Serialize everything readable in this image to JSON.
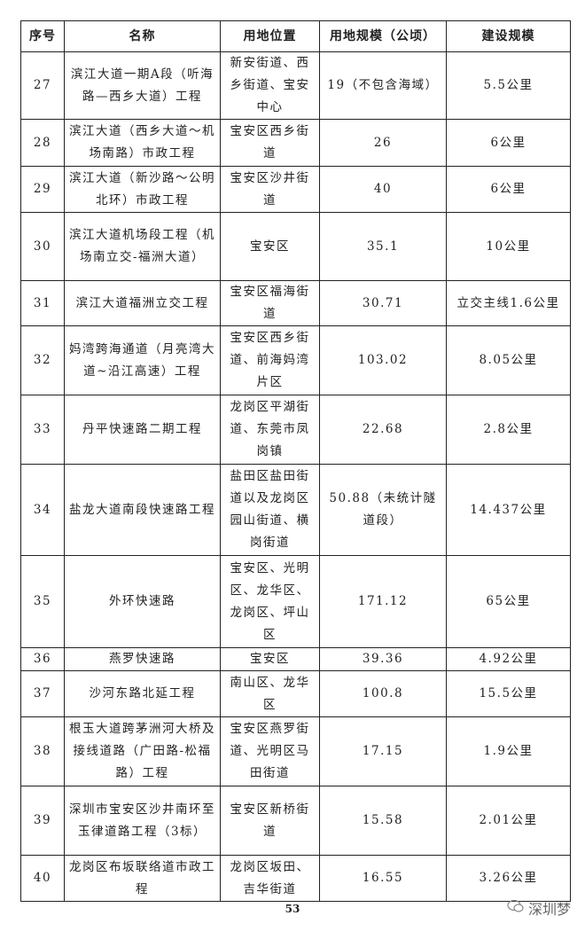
{
  "table": {
    "headers": [
      "序号",
      "名称",
      "用地位置",
      "用地规模（公顷）",
      "建设规模"
    ],
    "rows": [
      {
        "no": "27",
        "name": "滨江大道一期A段（听海路—西乡大道）工程",
        "location": "新安街道、西乡街道、宝安中心",
        "area": "19（不包含海域）",
        "scale": "5.5公里"
      },
      {
        "no": "28",
        "name": "滨江大道（西乡大道～机场南路）市政工程",
        "location": "宝安区西乡街道",
        "area": "26",
        "scale": "6公里"
      },
      {
        "no": "29",
        "name": "滨江大道（新沙路～公明北环）市政工程",
        "location": "宝安区沙井街道",
        "area": "40",
        "scale": "6公里"
      },
      {
        "no": "30",
        "name": "滨江大道机场段工程（机场南立交-福洲大道）",
        "location": "宝安区",
        "area": "35.1",
        "scale": "10公里"
      },
      {
        "no": "31",
        "name": "滨江大道福洲立交工程",
        "location": "宝安区福海街道",
        "area": "30.71",
        "scale": "立交主线1.6公里"
      },
      {
        "no": "32",
        "name": "妈湾跨海通道（月亮湾大道~沿江高速）工程",
        "location": "宝安区西乡街道、前海妈湾片区",
        "area": "103.02",
        "scale": "8.05公里"
      },
      {
        "no": "33",
        "name": "丹平快速路二期工程",
        "location": "龙岗区平湖街道、东莞市凤岗镇",
        "area": "22.68",
        "scale": "2.8公里"
      },
      {
        "no": "34",
        "name": "盐龙大道南段快速路工程",
        "location": "盐田区盐田街道以及龙岗区园山街道、横岗街道",
        "area": "50.88（未统计隧道段）",
        "scale": "14.437公里"
      },
      {
        "no": "35",
        "name": "外环快速路",
        "location": "宝安区、光明区、龙华区、龙岗区、坪山区",
        "area": "171.12",
        "scale": "65公里"
      },
      {
        "no": "36",
        "name": "燕罗快速路",
        "location": "宝安区",
        "area": "39.36",
        "scale": "4.92公里"
      },
      {
        "no": "37",
        "name": "沙河东路北延工程",
        "location": "南山区、龙华区",
        "area": "100.8",
        "scale": "15.5公里"
      },
      {
        "no": "38",
        "name": "根玉大道跨茅洲河大桥及接线道路（广田路-松福路）工程",
        "location": "宝安区燕罗街道、光明区马田街道",
        "area": "17.15",
        "scale": "1.9公里"
      },
      {
        "no": "39",
        "name": "深圳市宝安区沙井南环至玉律道路工程（3标）",
        "location": "宝安区新桥街道",
        "area": "15.58",
        "scale": "2.01公里"
      },
      {
        "no": "40",
        "name": "龙岗区布坂联络道市政工程",
        "location": "龙岗区坂田、吉华街道",
        "area": "16.55",
        "scale": "3.26公里"
      }
    ]
  },
  "footer": {
    "page_number": "53",
    "watermark": "深圳梦",
    "watermark_icon": "wechat-icon"
  }
}
